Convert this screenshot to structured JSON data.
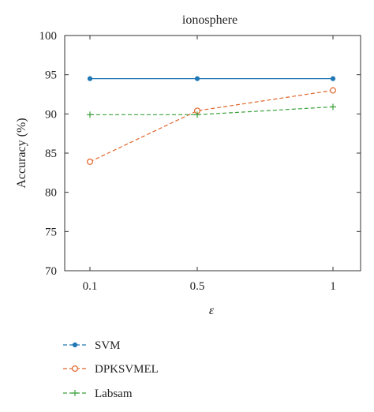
{
  "chart_data": {
    "type": "line",
    "title": "ionosphere",
    "xlabel": "ε",
    "ylabel": "Accuracy (%)",
    "categories": [
      "0.1",
      "0.5",
      "1"
    ],
    "ylim": [
      70,
      100
    ],
    "yticks": [
      70,
      75,
      80,
      85,
      90,
      95,
      100
    ],
    "grid": false,
    "legend_position": "bottom-left, below plot",
    "series": [
      {
        "name": "SVM",
        "values": [
          94.5,
          94.5,
          94.5
        ],
        "color": "#1f77b4",
        "marker": "filled-dot",
        "line": "solid"
      },
      {
        "name": "DPKSVMEL",
        "values": [
          83.9,
          90.4,
          93.0
        ],
        "color": "#e0652a",
        "marker": "open-circle",
        "line": "dashed"
      },
      {
        "name": "Labsam",
        "values": [
          89.9,
          89.9,
          90.9
        ],
        "color": "#3aa03a",
        "marker": "plus",
        "line": "dashed"
      }
    ]
  }
}
